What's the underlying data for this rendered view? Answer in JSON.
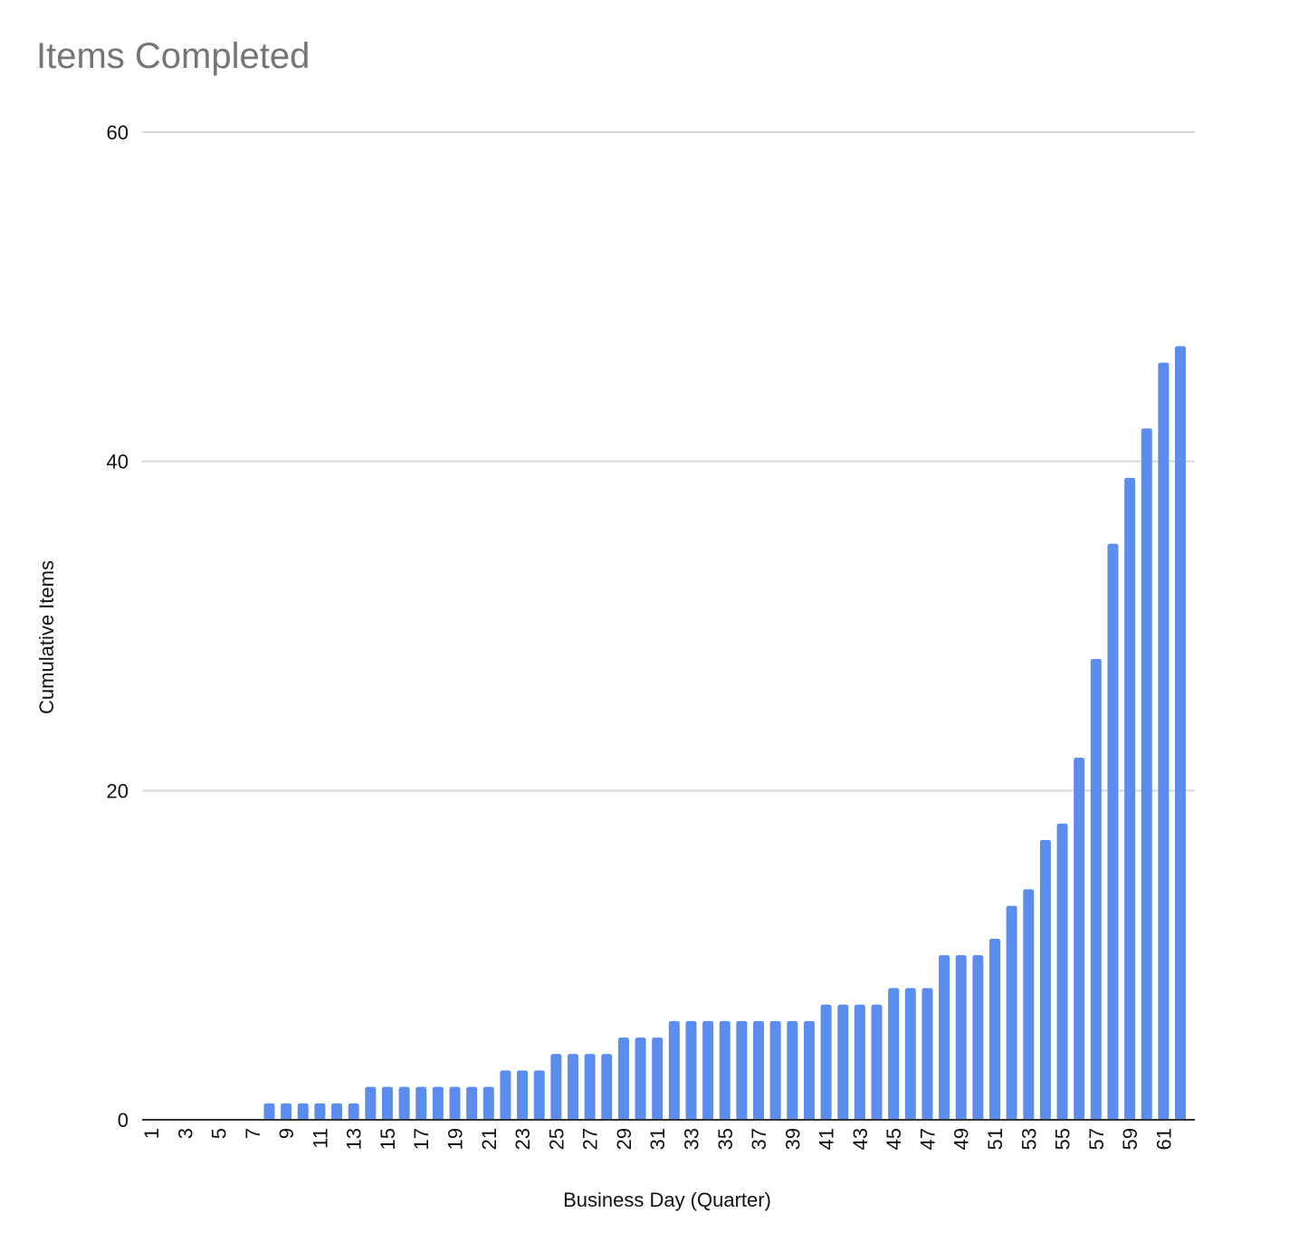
{
  "chart_data": {
    "type": "bar",
    "title": "Items Completed",
    "xlabel": "Business Day (Quarter)",
    "ylabel": "Cumulative Items",
    "ylim": [
      0,
      60
    ],
    "yticks": [
      0,
      20,
      40,
      60
    ],
    "grid": true,
    "color": "#5b8def",
    "categories": [
      "1",
      "2",
      "3",
      "4",
      "5",
      "6",
      "7",
      "8",
      "9",
      "10",
      "11",
      "12",
      "13",
      "14",
      "15",
      "16",
      "17",
      "18",
      "19",
      "20",
      "21",
      "22",
      "23",
      "24",
      "25",
      "26",
      "27",
      "28",
      "29",
      "30",
      "31",
      "32",
      "33",
      "34",
      "35",
      "36",
      "37",
      "38",
      "39",
      "40",
      "41",
      "42",
      "43",
      "44",
      "45",
      "46",
      "47",
      "48",
      "49",
      "50",
      "51",
      "52",
      "53",
      "54",
      "55",
      "56",
      "57",
      "58",
      "59",
      "60",
      "61",
      "62"
    ],
    "tick_labels": [
      "1",
      "3",
      "5",
      "7",
      "9",
      "11",
      "13",
      "15",
      "17",
      "19",
      "21",
      "23",
      "25",
      "27",
      "29",
      "31",
      "33",
      "35",
      "37",
      "39",
      "41",
      "43",
      "45",
      "47",
      "49",
      "51",
      "53",
      "55",
      "57",
      "59",
      "61"
    ],
    "values": [
      0,
      0,
      0,
      0,
      0,
      0,
      0,
      1,
      1,
      1,
      1,
      1,
      1,
      2,
      2,
      2,
      2,
      2,
      2,
      2,
      2,
      3,
      3,
      3,
      4,
      4,
      4,
      4,
      5,
      5,
      5,
      6,
      6,
      6,
      6,
      6,
      6,
      6,
      6,
      6,
      7,
      7,
      7,
      7,
      8,
      8,
      8,
      10,
      10,
      10,
      11,
      13,
      14,
      17,
      18,
      22,
      28,
      35,
      39,
      42,
      46,
      47
    ]
  }
}
